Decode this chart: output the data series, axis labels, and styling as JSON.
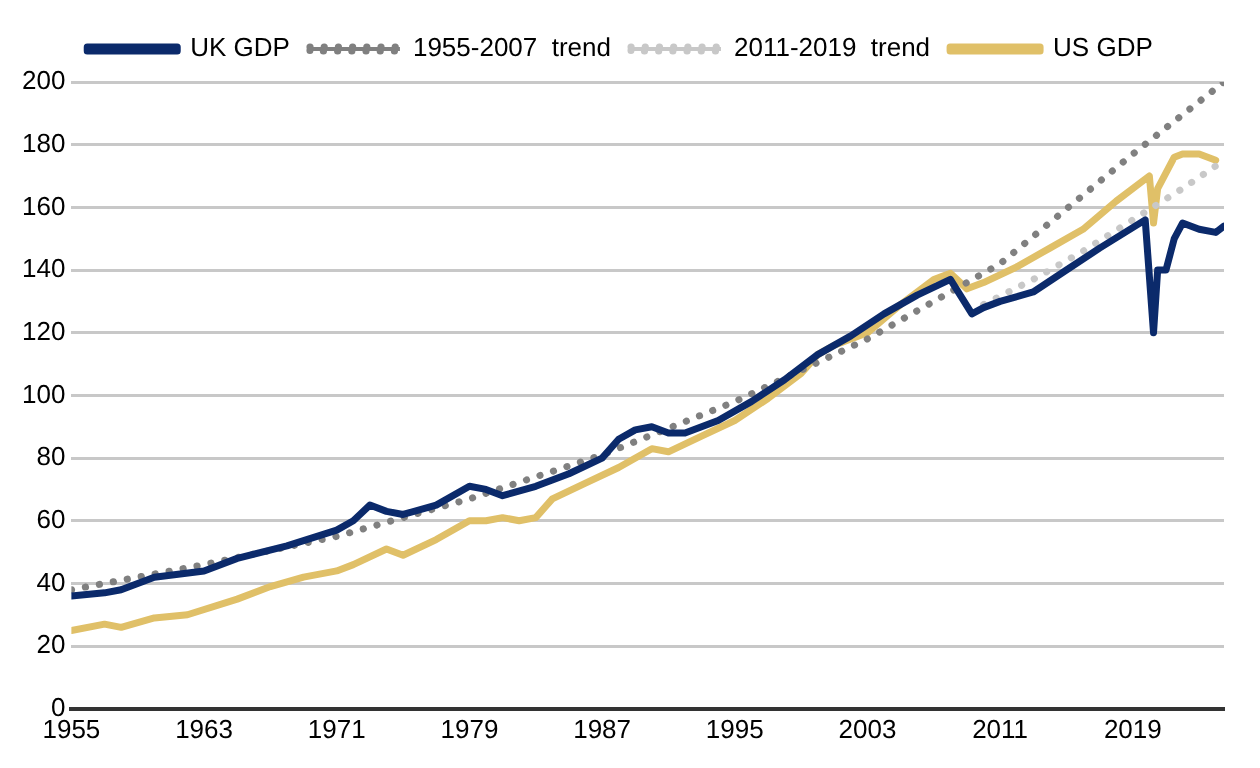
{
  "chart_data": {
    "type": "line",
    "xlim": [
      1955,
      2024.5
    ],
    "xticks": [
      1955,
      1963,
      1971,
      1979,
      1987,
      1995,
      2003,
      2011,
      2019
    ],
    "ylim": [
      0,
      200
    ],
    "yticks": [
      0,
      20,
      40,
      60,
      80,
      100,
      120,
      140,
      160,
      180,
      200
    ],
    "grid": "y",
    "legend": "top",
    "marker": "none",
    "series": [
      {
        "name": "UK GDP",
        "color": "#0b2a6b",
        "line_style": "solid",
        "x": [
          1955,
          1957,
          1958,
          1960,
          1963,
          1965,
          1968,
          1971,
          1972,
          1973,
          1974,
          1975,
          1977,
          1979,
          1980,
          1981,
          1983,
          1985,
          1987,
          1988,
          1989,
          1990,
          1991,
          1992,
          1994,
          1996,
          1998,
          2000,
          2002,
          2004,
          2006,
          2008,
          2009.3,
          2010,
          2011,
          2013,
          2015,
          2017,
          2019.75,
          2020.25,
          2020.5,
          2021,
          2021.5,
          2022,
          2023,
          2024,
          2024.5
        ],
        "values": [
          36,
          37,
          38,
          42,
          44,
          48,
          52,
          57,
          60,
          65,
          63,
          62,
          65,
          71,
          70,
          68,
          71,
          75,
          80,
          86,
          89,
          90,
          88,
          88,
          92,
          98,
          105,
          113,
          119,
          126,
          132,
          137,
          126,
          128,
          130,
          133,
          140,
          147,
          156,
          120,
          140,
          140,
          150,
          155,
          153,
          152,
          154
        ]
      },
      {
        "name": "1955-2007  trend",
        "color": "#808080",
        "line_style": "dotted",
        "x": [
          1955,
          1963,
          1971,
          1979,
          1987,
          1995,
          2003,
          2011,
          2019,
          2024.5
        ],
        "values": [
          38,
          46,
          55,
          67,
          81,
          98,
          118,
          142,
          177,
          200
        ]
      },
      {
        "name": "2011-2019  trend",
        "color": "#c8c8c8",
        "line_style": "dotted",
        "x": [
          2010,
          2013,
          2016,
          2019,
          2022,
          2024.5
        ],
        "values": [
          129,
          137,
          146,
          156,
          166,
          175
        ]
      },
      {
        "name": "US GDP",
        "color": "#e0c068",
        "line_style": "solid",
        "x": [
          1955,
          1957,
          1958,
          1960,
          1962,
          1965,
          1967,
          1969,
          1971,
          1972,
          1974,
          1975,
          1977,
          1979,
          1980,
          1981,
          1982,
          1983,
          1984,
          1986,
          1988,
          1990,
          1991,
          1993,
          1995,
          1997,
          1999,
          2000,
          2001,
          2003,
          2005,
          2007,
          2008,
          2009,
          2010,
          2012,
          2014,
          2016,
          2018,
          2019.5,
          2020,
          2020.25,
          2020.5,
          2021.5,
          2022,
          2023,
          2024
        ],
        "values": [
          25,
          27,
          26,
          29,
          30,
          35,
          39,
          42,
          44,
          46,
          51,
          49,
          54,
          60,
          60,
          61,
          60,
          61,
          67,
          72,
          77,
          83,
          82,
          87,
          92,
          99,
          107,
          113,
          116,
          120,
          129,
          137,
          139,
          134,
          136,
          141,
          147,
          153,
          162,
          168,
          170,
          155,
          166,
          176,
          177,
          177,
          175
        ]
      }
    ]
  }
}
